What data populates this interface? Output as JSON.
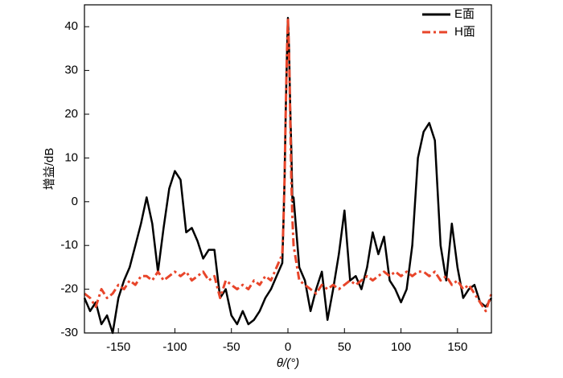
{
  "chart_data": {
    "type": "line",
    "xlabel": "θ/(°)",
    "ylabel": "增益/dB",
    "x": [
      -180,
      -175,
      -170,
      -165,
      -160,
      -155,
      -150,
      -145,
      -140,
      -135,
      -130,
      -125,
      -120,
      -115,
      -110,
      -105,
      -100,
      -95,
      -90,
      -85,
      -80,
      -75,
      -70,
      -65,
      -60,
      -55,
      -50,
      -45,
      -40,
      -35,
      -30,
      -25,
      -20,
      -15,
      -10,
      -5,
      -4,
      -3,
      -2,
      -1,
      0,
      1,
      2,
      3,
      4,
      5,
      10,
      15,
      20,
      25,
      30,
      35,
      40,
      45,
      50,
      55,
      60,
      65,
      70,
      75,
      80,
      85,
      90,
      95,
      100,
      105,
      110,
      115,
      120,
      125,
      130,
      135,
      140,
      145,
      150,
      155,
      160,
      165,
      170,
      175,
      180
    ],
    "series": [
      {
        "name": "E面",
        "color": "#000000",
        "dash": "solid",
        "values": [
          -22,
          -25,
          -23,
          -28,
          -26,
          -30,
          -22,
          -18,
          -15,
          -10,
          -5,
          1,
          -5,
          -16,
          -6,
          3,
          7,
          5,
          -7,
          -6,
          -9,
          -13,
          -11,
          -11,
          -22,
          -20,
          -26,
          -28,
          -25,
          -28,
          -27,
          -25,
          -22,
          -20,
          -17,
          -14,
          -5,
          5,
          20,
          32,
          42,
          35,
          22,
          12,
          0,
          1,
          -15,
          -18,
          -25,
          -20,
          -16,
          -27,
          -20,
          -12,
          -2,
          -18,
          -17,
          -20,
          -15,
          -7,
          -12,
          -8,
          -18,
          -20,
          -23,
          -20,
          -10,
          10,
          16,
          18,
          14,
          -10,
          -18,
          -5,
          -15,
          -22,
          -20,
          -19,
          -23,
          -24,
          -22
        ]
      },
      {
        "name": "H面",
        "color": "#e8452a",
        "dash": "dashdot",
        "values": [
          -21,
          -22,
          -24,
          -20,
          -22,
          -21,
          -19,
          -20,
          -18,
          -19,
          -17,
          -17,
          -18,
          -16,
          -18,
          -17,
          -16,
          -17,
          -16,
          -18,
          -17,
          -16,
          -18,
          -17,
          -22,
          -18,
          -19,
          -20,
          -19,
          -20,
          -18,
          -19,
          -17,
          -18,
          -15,
          -12,
          -5,
          5,
          20,
          33,
          42,
          34,
          20,
          5,
          -4,
          -10,
          -18,
          -19,
          -20,
          -21,
          -19,
          -20,
          -19,
          -20,
          -19,
          -18,
          -19,
          -18,
          -17,
          -18,
          -17,
          -16,
          -17,
          -16,
          -17,
          -16,
          -17,
          -16,
          -16,
          -17,
          -16,
          -18,
          -17,
          -19,
          -18,
          -20,
          -19,
          -21,
          -23,
          -25,
          -21
        ]
      }
    ],
    "xlim": [
      -180,
      180
    ],
    "ylim": [
      -30,
      45
    ],
    "xticks": [
      -150,
      -100,
      -50,
      0,
      50,
      100,
      150
    ],
    "yticks": [
      -30,
      -20,
      -10,
      0,
      10,
      20,
      30,
      40
    ],
    "legend": "upper right",
    "grid": false
  }
}
